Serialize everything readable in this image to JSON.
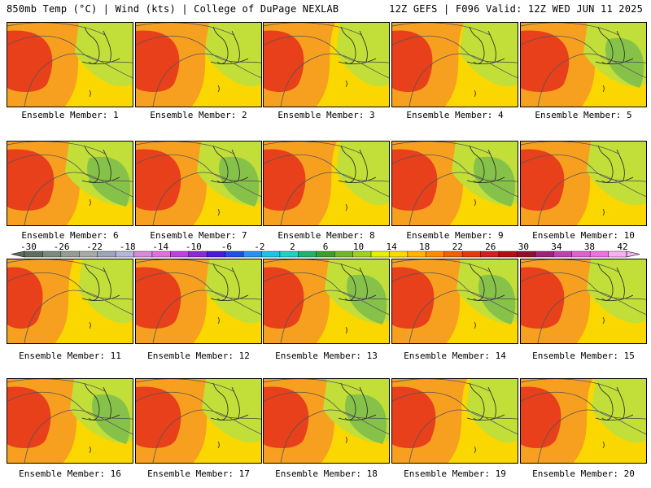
{
  "header": {
    "left": "850mb Temp (°C) | Wind (kts) | College of DuPage NEXLAB",
    "right": "12Z GEFS | F096 Valid: 12Z WED JUN 11 2025"
  },
  "member_prefix": "Ensemble Member: ",
  "members": [
    {
      "label": "Ensemble Member: 1",
      "warm": 0.85,
      "cool": 0.55
    },
    {
      "label": "Ensemble Member: 2",
      "warm": 0.8,
      "cool": 0.5
    },
    {
      "label": "Ensemble Member: 3",
      "warm": 0.7,
      "cool": 0.4
    },
    {
      "label": "Ensemble Member: 4",
      "warm": 0.7,
      "cool": 0.55
    },
    {
      "label": "Ensemble Member: 5",
      "warm": 0.95,
      "cool": 0.7
    },
    {
      "label": "Ensemble Member: 6",
      "warm": 0.9,
      "cool": 0.85
    },
    {
      "label": "Ensemble Member: 7",
      "warm": 0.85,
      "cool": 0.75
    },
    {
      "label": "Ensemble Member: 8",
      "warm": 0.75,
      "cool": 0.4
    },
    {
      "label": "Ensemble Member: 9",
      "warm": 0.85,
      "cool": 0.8
    },
    {
      "label": "Ensemble Member: 10",
      "warm": 0.8,
      "cool": 0.6
    },
    {
      "label": "Ensemble Member: 11",
      "warm": 0.55,
      "cool": 0.45
    },
    {
      "label": "Ensemble Member: 12",
      "warm": 0.85,
      "cool": 0.5
    },
    {
      "label": "Ensemble Member: 13",
      "warm": 0.7,
      "cool": 0.75
    },
    {
      "label": "Ensemble Member: 14",
      "warm": 0.75,
      "cool": 0.65
    },
    {
      "label": "Ensemble Member: 15",
      "warm": 0.8,
      "cool": 0.6
    },
    {
      "label": "Ensemble Member: 16",
      "warm": 0.8,
      "cool": 0.7
    },
    {
      "label": "Ensemble Member: 17",
      "warm": 0.85,
      "cool": 0.6
    },
    {
      "label": "Ensemble Member: 18",
      "warm": 0.85,
      "cool": 0.8
    },
    {
      "label": "Ensemble Member: 19",
      "warm": 0.8,
      "cool": 0.35
    },
    {
      "label": "Ensemble Member: 20",
      "warm": 0.7,
      "cool": 0.45
    }
  ],
  "colorbar": {
    "labels": [
      "-30",
      "-26",
      "-22",
      "-18",
      "-14",
      "-10",
      "-6",
      "-2",
      "2",
      "6",
      "10",
      "14",
      "18",
      "22",
      "26",
      "30",
      "34",
      "38",
      "42"
    ],
    "colors": [
      "#5e6e5e",
      "#7b8b7b",
      "#949c94",
      "#a8aaa8",
      "#9aa6b8",
      "#b6b6d8",
      "#d68ad8",
      "#e070e0",
      "#c040e0",
      "#8a2ad0",
      "#4a1ad0",
      "#2050e0",
      "#2a90f0",
      "#20c0e8",
      "#20d0c0",
      "#20b070",
      "#3aa02a",
      "#70b828",
      "#a0d020",
      "#e8f000",
      "#ffd800",
      "#ffb400",
      "#ff8c00",
      "#f06000",
      "#e03a10",
      "#d02020",
      "#b01010",
      "#901030",
      "#a0207a",
      "#c040b0",
      "#e060d0",
      "#f070e0",
      "#f8b0f0"
    ]
  },
  "map_colors": {
    "hot": "#e8401a",
    "warm": "#f7a020",
    "mid": "#fbd700",
    "cool": "#c2de38",
    "cold": "#86c24a",
    "contour": "#555555"
  }
}
